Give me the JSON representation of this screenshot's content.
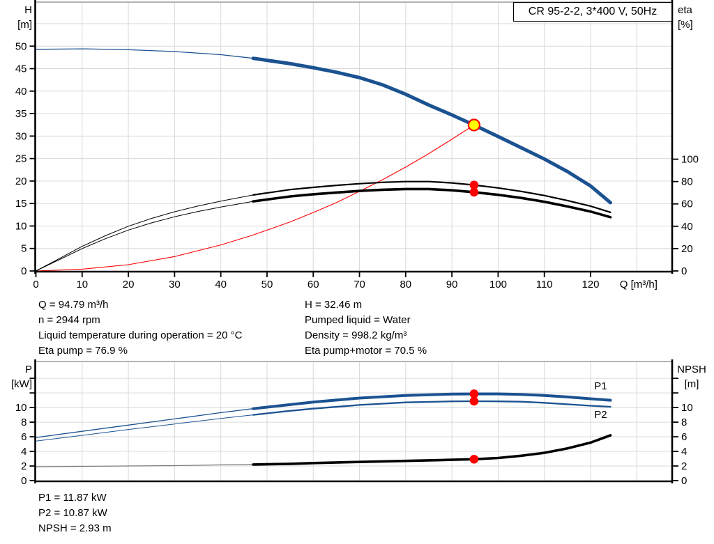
{
  "header": {
    "model_box": "CR 95-2-2, 3*400 V, 50Hz"
  },
  "colors": {
    "curve_blue": "#1b5291",
    "curve_black": "#000000",
    "system_red": "#ff0000",
    "marker_red": "#ff0000",
    "marker_yellow": "#ffff00",
    "grid": "#d9d9d9",
    "frame": "#9a9a9a",
    "axis": "#000000"
  },
  "axis_corner": {
    "top_left1": "H",
    "top_left2": "[m]",
    "top_right1": "eta",
    "top_right2": "[%]",
    "bot_left1": "P",
    "bot_left2": "[kW]",
    "bot_right1": "NPSH",
    "bot_right2": "[m]"
  },
  "info_top": {
    "left": [
      "Q = 94.79 m³/h",
      "n = 2944 rpm",
      "Liquid temperature during operation = 20 °C",
      "Eta pump = 76.9 %"
    ],
    "right": [
      "H = 32.46 m",
      "Pumped liquid = Water",
      "Density = 998.2 kg/m³",
      "Eta pump+motor = 70.5 %"
    ]
  },
  "info_bottom": [
    "P1 = 11.87 kW",
    "P2 = 10.87 kW",
    "NPSH = 2.93 m"
  ],
  "chart_data": [
    {
      "type": "line",
      "title": "CR 95-2-2, 3*400 V, 50Hz",
      "xlabel": "Q [m³/h]",
      "xlabel_x": 126.3,
      "ylabel_left": "H [m]",
      "ylabel_right": "eta [%]",
      "xlim": [
        0,
        137.5
      ],
      "ylim_left": [
        0,
        59.8
      ],
      "ylim_right": [
        0,
        240.6
      ],
      "grid": {
        "x_step": 10,
        "x_max": 130,
        "y_step": 5,
        "y_max": 55
      },
      "x_ticks": [
        [
          0,
          "0"
        ],
        [
          10,
          "10"
        ],
        [
          20,
          "20"
        ],
        [
          30,
          "30"
        ],
        [
          40,
          "40"
        ],
        [
          50,
          "50"
        ],
        [
          60,
          "60"
        ],
        [
          70,
          "70"
        ],
        [
          80,
          "80"
        ],
        [
          90,
          "90"
        ],
        [
          100,
          "100"
        ],
        [
          110,
          "110"
        ],
        [
          120,
          "120"
        ]
      ],
      "y_ticks_left": [
        [
          0,
          "0"
        ],
        [
          5,
          "5"
        ],
        [
          10,
          "10"
        ],
        [
          15,
          "15"
        ],
        [
          20,
          "20"
        ],
        [
          25,
          "25"
        ],
        [
          30,
          "30"
        ],
        [
          35,
          "35"
        ],
        [
          40,
          "40"
        ],
        [
          45,
          "45"
        ],
        [
          50,
          "50"
        ]
      ],
      "y_ticks_right": [
        [
          0,
          "0"
        ],
        [
          20,
          "20"
        ],
        [
          40,
          "40"
        ],
        [
          60,
          "60"
        ],
        [
          80,
          "80"
        ],
        [
          100,
          "100"
        ]
      ],
      "series": [
        {
          "name": "head-curve",
          "axis": "left",
          "color": "#1b5291",
          "thin": 1.3,
          "thick": 5,
          "thick_from": 47,
          "points": [
            [
              0,
              49.3
            ],
            [
              10,
              49.4
            ],
            [
              20,
              49.2
            ],
            [
              30,
              48.8
            ],
            [
              40,
              48.1
            ],
            [
              47,
              47.3
            ],
            [
              55,
              46.1
            ],
            [
              60,
              45.2
            ],
            [
              65,
              44.2
            ],
            [
              70,
              43.0
            ],
            [
              75,
              41.4
            ],
            [
              80,
              39.3
            ],
            [
              85,
              36.9
            ],
            [
              90,
              34.7
            ],
            [
              94.79,
              32.46
            ],
            [
              100,
              29.9
            ],
            [
              105,
              27.4
            ],
            [
              110,
              24.9
            ],
            [
              115,
              22.1
            ],
            [
              120,
              18.9
            ],
            [
              124.3,
              15.2
            ]
          ]
        },
        {
          "name": "system-curve",
          "axis": "left",
          "color": "#ff0000",
          "thin": 1.1,
          "thick": 1.1,
          "thick_from": 999,
          "points": [
            [
              0,
              0
            ],
            [
              10,
              0.4
            ],
            [
              20,
              1.4
            ],
            [
              30,
              3.2
            ],
            [
              40,
              5.8
            ],
            [
              47,
              8.0
            ],
            [
              55,
              10.9
            ],
            [
              60,
              13.0
            ],
            [
              65,
              15.2
            ],
            [
              70,
              17.7
            ],
            [
              75,
              20.3
            ],
            [
              80,
              23.1
            ],
            [
              85,
              26.1
            ],
            [
              90,
              29.3
            ],
            [
              94.79,
              32.46
            ]
          ]
        },
        {
          "name": "eta-pump-curve",
          "axis": "right",
          "color": "#000000",
          "thin": 1,
          "thick": 2.2,
          "thick_from": 47,
          "points": [
            [
              0,
              0
            ],
            [
              5,
              11
            ],
            [
              10,
              22
            ],
            [
              15,
              31.5
            ],
            [
              20,
              40
            ],
            [
              25,
              47
            ],
            [
              30,
              53
            ],
            [
              35,
              58
            ],
            [
              40,
              62.5
            ],
            [
              47,
              68
            ],
            [
              55,
              72.8
            ],
            [
              60,
              74.8
            ],
            [
              65,
              76.6
            ],
            [
              70,
              78.1
            ],
            [
              75,
              79.3
            ],
            [
              80,
              80
            ],
            [
              85,
              80
            ],
            [
              90,
              78.8
            ],
            [
              94.79,
              76.9
            ],
            [
              100,
              74.3
            ],
            [
              105,
              71.2
            ],
            [
              110,
              67.5
            ],
            [
              115,
              63
            ],
            [
              120,
              58
            ],
            [
              124.3,
              52.5
            ]
          ]
        },
        {
          "name": "eta-pump-motor-curve",
          "axis": "right",
          "color": "#000000",
          "thin": 1,
          "thick": 3.6,
          "thick_from": 47,
          "points": [
            [
              0,
              0
            ],
            [
              5,
              10
            ],
            [
              10,
              20
            ],
            [
              15,
              28.8
            ],
            [
              20,
              36.6
            ],
            [
              25,
              43
            ],
            [
              30,
              48.5
            ],
            [
              35,
              53.1
            ],
            [
              40,
              57.2
            ],
            [
              47,
              62.3
            ],
            [
              55,
              66.7
            ],
            [
              60,
              68.6
            ],
            [
              65,
              70.2
            ],
            [
              70,
              71.6
            ],
            [
              75,
              72.7
            ],
            [
              80,
              73.3
            ],
            [
              85,
              73.3
            ],
            [
              90,
              72.2
            ],
            [
              94.79,
              70.5
            ],
            [
              100,
              68.1
            ],
            [
              105,
              65.3
            ],
            [
              110,
              61.9
            ],
            [
              115,
              57.7
            ],
            [
              120,
              53.2
            ],
            [
              124.3,
              48.1
            ]
          ]
        }
      ],
      "markers": [
        {
          "name": "duty-point-marker",
          "axis": "left",
          "x": 94.79,
          "y": 32.46,
          "r": 8,
          "fill": "#ffff00",
          "stroke": "#ff0000",
          "stroke_w": 2.2
        },
        {
          "name": "eta-pump-point-marker",
          "axis": "right",
          "x": 94.79,
          "y": 76.9,
          "r": 6.3,
          "fill": "#ff0000"
        },
        {
          "name": "eta-pump-motor-point-marker",
          "axis": "right",
          "x": 94.79,
          "y": 70.5,
          "r": 6.3,
          "fill": "#ff0000"
        }
      ],
      "end_labels": []
    },
    {
      "type": "line",
      "title": "",
      "xlabel": "",
      "ylabel_left": "P [kW]",
      "ylabel_right": "NPSH [m]",
      "xlim": [
        0,
        137.5
      ],
      "ylim_left": [
        0,
        16.3
      ],
      "ylim_right": [
        0,
        16.3
      ],
      "grid": {
        "x_step": 10,
        "x_max": 130,
        "y_step": 2,
        "y_max": 14
      },
      "x_ticks": [],
      "y_ticks_left": [
        [
          0,
          "0"
        ],
        [
          2,
          "2"
        ],
        [
          4,
          "4"
        ],
        [
          6,
          "6"
        ],
        [
          8,
          "8"
        ],
        [
          10,
          "10"
        ],
        [
          12,
          ""
        ],
        [
          14,
          ""
        ]
      ],
      "y_ticks_right": [
        [
          0,
          "0"
        ],
        [
          2,
          "2"
        ],
        [
          4,
          "4"
        ],
        [
          6,
          "6"
        ],
        [
          8,
          "8"
        ],
        [
          10,
          "10"
        ],
        [
          12,
          ""
        ],
        [
          14,
          ""
        ]
      ],
      "series": [
        {
          "name": "p1-curve",
          "axis": "left",
          "color": "#1b5291",
          "thin": 1.3,
          "thick": 4,
          "thick_from": 47,
          "points": [
            [
              0,
              5.9
            ],
            [
              10,
              6.75
            ],
            [
              20,
              7.6
            ],
            [
              30,
              8.45
            ],
            [
              40,
              9.3
            ],
            [
              47,
              9.85
            ],
            [
              55,
              10.4
            ],
            [
              60,
              10.75
            ],
            [
              70,
              11.3
            ],
            [
              80,
              11.65
            ],
            [
              90,
              11.85
            ],
            [
              94.79,
              11.87
            ],
            [
              100,
              11.87
            ],
            [
              105,
              11.8
            ],
            [
              110,
              11.65
            ],
            [
              115,
              11.45
            ],
            [
              120,
              11.2
            ],
            [
              124.3,
              11.0
            ]
          ]
        },
        {
          "name": "p2-curve",
          "axis": "left",
          "color": "#1b5291",
          "thin": 1,
          "thick": 2.3,
          "thick_from": 47,
          "points": [
            [
              0,
              5.4
            ],
            [
              10,
              6.2
            ],
            [
              20,
              7.0
            ],
            [
              30,
              7.75
            ],
            [
              40,
              8.5
            ],
            [
              47,
              9.0
            ],
            [
              55,
              9.55
            ],
            [
              60,
              9.85
            ],
            [
              70,
              10.35
            ],
            [
              80,
              10.7
            ],
            [
              90,
              10.85
            ],
            [
              94.79,
              10.87
            ],
            [
              100,
              10.85
            ],
            [
              105,
              10.8
            ],
            [
              110,
              10.65
            ],
            [
              115,
              10.45
            ],
            [
              120,
              10.25
            ],
            [
              124.3,
              10.1
            ]
          ]
        },
        {
          "name": "npsh-curve",
          "axis": "right",
          "color": "#000000",
          "thin_color": "#777777",
          "thin": 1.2,
          "thick": 3.6,
          "thick_from": 47,
          "points": [
            [
              0,
              1.9
            ],
            [
              10,
              1.95
            ],
            [
              20,
              2.0
            ],
            [
              30,
              2.05
            ],
            [
              40,
              2.15
            ],
            [
              47,
              2.2
            ],
            [
              55,
              2.3
            ],
            [
              60,
              2.4
            ],
            [
              70,
              2.55
            ],
            [
              80,
              2.7
            ],
            [
              90,
              2.85
            ],
            [
              94.79,
              2.93
            ],
            [
              100,
              3.1
            ],
            [
              105,
              3.4
            ],
            [
              110,
              3.8
            ],
            [
              115,
              4.4
            ],
            [
              120,
              5.2
            ],
            [
              124.3,
              6.2
            ]
          ]
        }
      ],
      "markers": [
        {
          "name": "p1-point-marker",
          "axis": "left",
          "x": 94.79,
          "y": 11.87,
          "r": 6.3,
          "fill": "#ff0000"
        },
        {
          "name": "p2-point-marker",
          "axis": "left",
          "x": 94.79,
          "y": 10.87,
          "r": 6.3,
          "fill": "#ff0000"
        },
        {
          "name": "npsh-point-marker",
          "axis": "right",
          "x": 94.79,
          "y": 2.93,
          "r": 6.3,
          "fill": "#ff0000"
        }
      ],
      "end_labels": [
        {
          "text": "P1",
          "x": 120.8,
          "y": 12.95,
          "color": "#1b5291"
        },
        {
          "text": "P2",
          "x": 120.8,
          "y": 9.05,
          "color": "#1b5291"
        }
      ]
    }
  ]
}
